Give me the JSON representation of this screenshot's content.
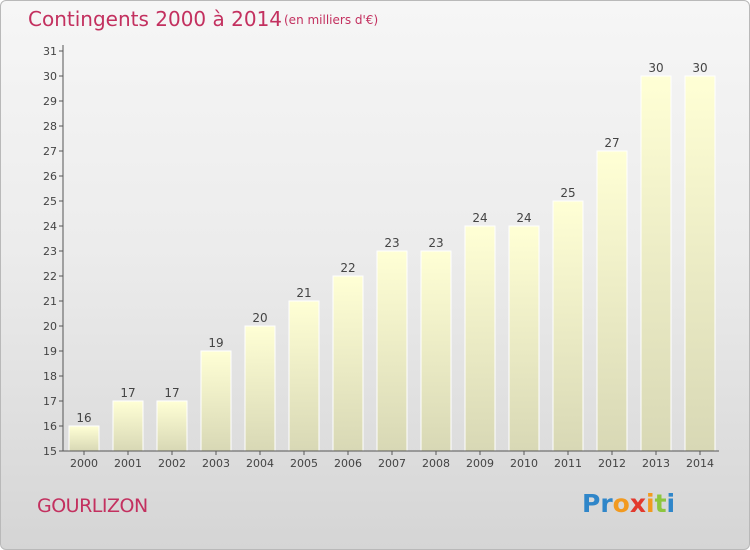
{
  "header": {
    "title": "Contingents 2000 à 2014",
    "subtitle": "(en milliers d'€)"
  },
  "footer": {
    "city": "GOURLIZON",
    "logo": {
      "text": "Proxiti",
      "letters": [
        {
          "char": "P",
          "color": "#2f86c9"
        },
        {
          "char": "r",
          "color": "#2f86c9"
        },
        {
          "char": "o",
          "color": "#f29a1f"
        },
        {
          "char": "x",
          "color": "#e2392d"
        },
        {
          "char": "i",
          "color": "#f29a1f"
        },
        {
          "char": "t",
          "color": "#8dc63f"
        },
        {
          "char": "i",
          "color": "#2f86c9"
        }
      ]
    }
  },
  "colors": {
    "accent": "#c3305f",
    "bar_top": "#ffffd5",
    "bar_bottom": "#d8d8b5"
  },
  "chart_data": {
    "type": "bar",
    "categories": [
      "2000",
      "2001",
      "2002",
      "2003",
      "2004",
      "2005",
      "2006",
      "2007",
      "2008",
      "2009",
      "2010",
      "2011",
      "2012",
      "2013",
      "2014"
    ],
    "values": [
      16,
      17,
      17,
      19,
      20,
      21,
      22,
      23,
      23,
      24,
      24,
      25,
      27,
      30,
      30
    ],
    "title": "Contingents 2000 à 2014",
    "subtitle": "(en milliers d'€)",
    "xlabel": "",
    "ylabel": "",
    "ylim": [
      15,
      31
    ],
    "yticks": [
      15,
      16,
      17,
      18,
      19,
      20,
      21,
      22,
      23,
      24,
      25,
      26,
      27,
      28,
      29,
      30,
      31
    ],
    "grid": false,
    "legend": "none"
  }
}
